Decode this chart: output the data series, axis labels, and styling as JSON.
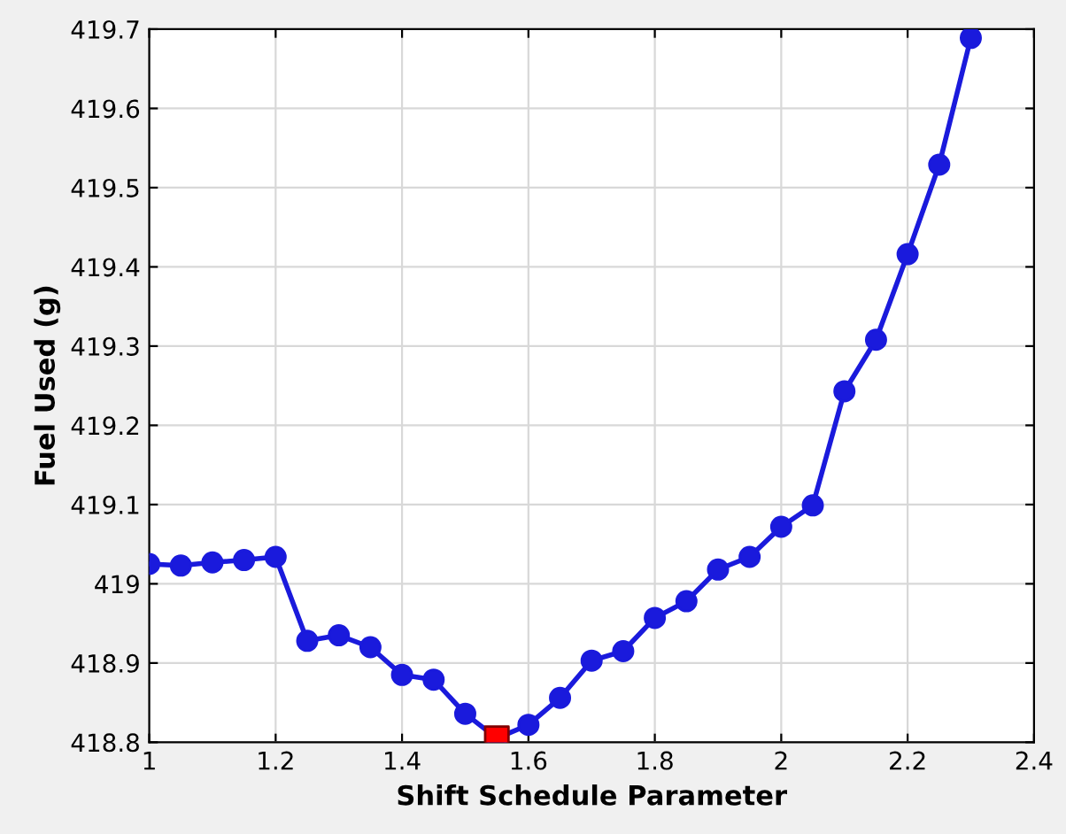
{
  "chart_data": {
    "type": "line",
    "xlabel": "Shift Schedule Parameter",
    "ylabel": "Fuel Used (g)",
    "xlim": [
      1,
      2.4
    ],
    "xticks": [
      1,
      1.2,
      1.4,
      1.6,
      1.8,
      {
        "value": 2,
        "label": "2"
      },
      2.2,
      2.4
    ],
    "ylim": [
      418.8,
      419.7
    ],
    "yticks": [
      418.8,
      418.9,
      {
        "value": 419,
        "label": "419"
      },
      419.1,
      419.2,
      419.3,
      419.4,
      419.5,
      419.6,
      419.7
    ],
    "grid": true,
    "legend": false,
    "series": [
      {
        "marker": "circle",
        "line_style": "solid",
        "color": "#1a1adc",
        "x": [
          1.0,
          1.05,
          1.1,
          1.15,
          1.2,
          1.25,
          1.3,
          1.35,
          1.4,
          1.45,
          1.5,
          1.55,
          1.6,
          1.65,
          1.7,
          1.75,
          1.8,
          1.85,
          1.9,
          1.95,
          2.0,
          2.05,
          2.1,
          2.15,
          2.2,
          2.25,
          2.3
        ],
        "values": [
          419.025,
          419.023,
          419.027,
          419.03,
          419.034,
          418.928,
          418.935,
          418.92,
          418.885,
          418.879,
          418.836,
          418.805,
          418.822,
          418.856,
          418.903,
          418.915,
          418.957,
          418.978,
          419.018,
          419.034,
          419.072,
          419.099,
          419.243,
          419.308,
          419.416,
          419.529,
          419.689
        ]
      },
      {
        "type": "scatter",
        "marker": "square",
        "color": "#ff0000",
        "x": [
          1.55
        ],
        "values": [
          418.805
        ]
      }
    ]
  }
}
